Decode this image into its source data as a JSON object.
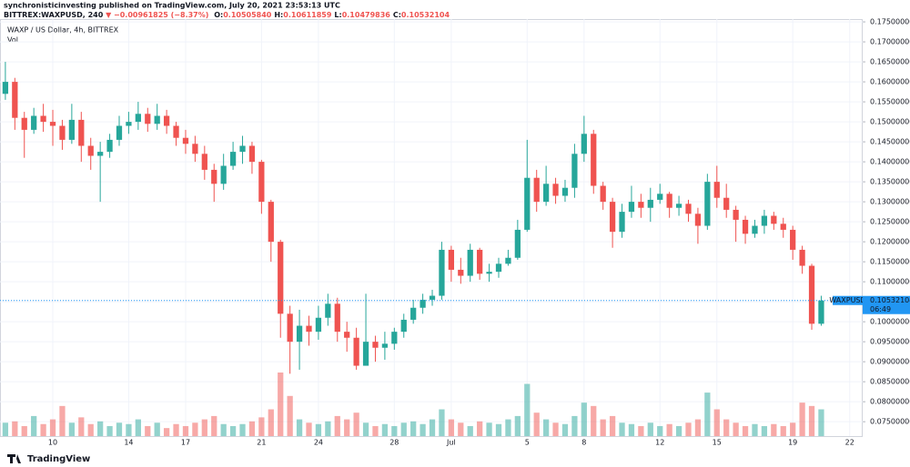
{
  "header": {
    "publisher": "synchronisticinvesting published on TradingView.com, July 20, 2021 23:53:13 UTC",
    "symbol": "BITTREX:WAXPUSD, 240",
    "change": "▼ −0.00961825 (−8.37%)",
    "ohlc": [
      {
        "label": "O:",
        "value": "0.10505840"
      },
      {
        "label": "H:",
        "value": "0.10611859"
      },
      {
        "label": "L:",
        "value": "0.10479836"
      },
      {
        "label": "C:",
        "value": "0.10532104"
      }
    ]
  },
  "footer": {
    "logo": "TradingView"
  },
  "chart_data": {
    "type": "candlestick",
    "title": "WAXP / US Dollar, 4h, BITTREX",
    "volume_label": "Vol",
    "up_color": "#26a69a",
    "down_color": "#ef5350",
    "last_price": 0.10532104,
    "last_symbol": "WAXPUSD",
    "countdown": "06:49",
    "last_color": "#2196f3",
    "ylim": [
      0.0714,
      0.1757
    ],
    "yticks": [
      {
        "value": 0.075,
        "label": "0.07500000"
      },
      {
        "value": 0.08,
        "label": "0.08000000"
      },
      {
        "value": 0.085,
        "label": "0.08500000"
      },
      {
        "value": 0.09,
        "label": "0.09000000"
      },
      {
        "value": 0.095,
        "label": "0.09500000"
      },
      {
        "value": 0.1,
        "label": "0.10000000"
      },
      {
        "value": 0.105,
        "label": "0.10500000"
      },
      {
        "value": 0.11,
        "label": "0.11000000"
      },
      {
        "value": 0.115,
        "label": "0.11500000"
      },
      {
        "value": 0.12,
        "label": "0.12000000"
      },
      {
        "value": 0.125,
        "label": "0.12500000"
      },
      {
        "value": 0.13,
        "label": "0.13000000"
      },
      {
        "value": 0.135,
        "label": "0.13500000"
      },
      {
        "value": 0.14,
        "label": "0.14000000"
      },
      {
        "value": 0.145,
        "label": "0.14500000"
      },
      {
        "value": 0.15,
        "label": "0.15000000"
      },
      {
        "value": 0.155,
        "label": "0.15500000"
      },
      {
        "value": 0.16,
        "label": "0.16000000"
      },
      {
        "value": 0.165,
        "label": "0.16500000"
      },
      {
        "value": 0.17,
        "label": "0.17000000"
      },
      {
        "value": 0.175,
        "label": "0.17500000"
      }
    ],
    "categories": [
      null,
      null,
      null,
      null,
      null,
      "10",
      null,
      null,
      null,
      null,
      null,
      null,
      null,
      "14",
      null,
      null,
      null,
      null,
      null,
      "17",
      null,
      null,
      null,
      null,
      null,
      null,
      null,
      "21",
      null,
      null,
      null,
      null,
      null,
      "24",
      null,
      null,
      null,
      null,
      null,
      null,
      null,
      "28",
      null,
      null,
      null,
      null,
      null,
      "Jul",
      null,
      null,
      null,
      null,
      null,
      null,
      null,
      "5",
      null,
      null,
      null,
      null,
      null,
      "8",
      null,
      null,
      null,
      null,
      null,
      null,
      null,
      "12",
      null,
      null,
      null,
      null,
      null,
      "15",
      null,
      null,
      null,
      null,
      null,
      null,
      null,
      "19",
      null,
      null,
      null,
      null,
      null,
      "22"
    ],
    "open": [
      0.157,
      0.16,
      0.151,
      0.148,
      0.1515,
      0.15,
      0.149,
      0.1455,
      0.1505,
      0.144,
      0.1415,
      0.1425,
      0.1455,
      0.149,
      0.15,
      0.152,
      0.1495,
      0.1515,
      0.149,
      0.146,
      0.1445,
      0.142,
      0.138,
      0.1345,
      0.139,
      0.1425,
      0.144,
      0.14,
      0.13,
      0.12,
      0.102,
      0.095,
      0.099,
      0.0975,
      0.101,
      0.1045,
      0.0975,
      0.096,
      0.089,
      0.095,
      0.0935,
      0.0945,
      0.0975,
      0.1005,
      0.1035,
      0.1055,
      0.1065,
      0.118,
      0.113,
      0.1115,
      0.118,
      0.112,
      0.1125,
      0.1145,
      0.116,
      0.123,
      0.136,
      0.13,
      0.1345,
      0.1315,
      0.1335,
      0.142,
      0.147,
      0.134,
      0.13,
      0.1225,
      0.1275,
      0.13,
      0.1285,
      0.1305,
      0.132,
      0.1285,
      0.1295,
      0.127,
      0.124,
      0.135,
      0.131,
      0.128,
      0.1255,
      0.122,
      0.124,
      0.1265,
      0.1245,
      0.123,
      0.118,
      0.114,
      0.0995,
      null,
      null,
      null
    ],
    "high": [
      0.165,
      0.161,
      0.1525,
      0.1535,
      0.1545,
      0.153,
      0.1505,
      0.1545,
      0.1525,
      0.146,
      0.145,
      0.147,
      0.1515,
      0.1525,
      0.155,
      0.1535,
      0.1545,
      0.153,
      0.15,
      0.148,
      0.1465,
      0.144,
      0.1395,
      0.142,
      0.145,
      0.1465,
      0.145,
      0.1405,
      0.1305,
      0.1205,
      0.104,
      0.103,
      0.1015,
      0.104,
      0.107,
      0.106,
      0.1,
      0.0985,
      0.107,
      0.0965,
      0.0975,
      0.0985,
      0.102,
      0.1055,
      0.107,
      0.108,
      0.12,
      0.119,
      0.116,
      0.1195,
      0.1185,
      0.1145,
      0.116,
      0.118,
      0.1255,
      0.1455,
      0.138,
      0.139,
      0.136,
      0.1355,
      0.1445,
      0.1515,
      0.148,
      0.135,
      0.131,
      0.1295,
      0.134,
      0.132,
      0.1335,
      0.1345,
      0.1325,
      0.1315,
      0.1305,
      0.1285,
      0.137,
      0.139,
      0.1345,
      0.129,
      0.1265,
      0.1255,
      0.128,
      0.1275,
      0.126,
      0.124,
      0.119,
      0.1145,
      0.1065,
      null,
      null,
      null
    ],
    "low": [
      0.1555,
      0.148,
      0.141,
      0.147,
      0.1475,
      0.144,
      0.143,
      0.1445,
      0.14,
      0.138,
      0.13,
      0.141,
      0.144,
      0.147,
      0.148,
      0.1475,
      0.148,
      0.147,
      0.144,
      0.142,
      0.14,
      0.1355,
      0.13,
      0.133,
      0.138,
      0.1395,
      0.137,
      0.127,
      0.115,
      0.096,
      0.087,
      0.088,
      0.094,
      0.0955,
      0.099,
      0.095,
      0.0925,
      0.088,
      0.089,
      0.09,
      0.0905,
      0.093,
      0.096,
      0.0995,
      0.102,
      0.104,
      0.1055,
      0.11,
      0.1095,
      0.11,
      0.1105,
      0.11,
      0.111,
      0.114,
      0.1155,
      0.1225,
      0.1275,
      0.129,
      0.1295,
      0.13,
      0.131,
      0.14,
      0.132,
      0.128,
      0.1185,
      0.121,
      0.126,
      0.126,
      0.125,
      0.1295,
      0.126,
      0.1265,
      0.125,
      0.1195,
      0.123,
      0.1285,
      0.126,
      0.12,
      0.1195,
      0.121,
      0.122,
      0.123,
      0.121,
      0.1155,
      0.112,
      0.098,
      0.099,
      null,
      null,
      null
    ],
    "close": [
      0.16,
      0.151,
      0.148,
      0.1515,
      0.15,
      0.149,
      0.1455,
      0.1505,
      0.144,
      0.1415,
      0.1425,
      0.1455,
      0.149,
      0.15,
      0.152,
      0.1495,
      0.1515,
      0.149,
      0.146,
      0.1445,
      0.142,
      0.138,
      0.1345,
      0.139,
      0.1425,
      0.144,
      0.14,
      0.13,
      0.12,
      0.102,
      0.095,
      0.099,
      0.0975,
      0.101,
      0.1045,
      0.0975,
      0.096,
      0.089,
      0.095,
      0.0935,
      0.0945,
      0.0975,
      0.1005,
      0.1035,
      0.1055,
      0.1065,
      0.118,
      0.113,
      0.1115,
      0.118,
      0.112,
      0.1125,
      0.1145,
      0.116,
      0.123,
      0.136,
      0.13,
      0.1345,
      0.1315,
      0.1335,
      0.142,
      0.147,
      0.134,
      0.13,
      0.1225,
      0.1275,
      0.13,
      0.1285,
      0.1305,
      0.132,
      0.1285,
      0.1295,
      0.127,
      0.124,
      0.135,
      0.131,
      0.128,
      0.1255,
      0.122,
      0.124,
      0.1265,
      0.1245,
      0.123,
      0.118,
      0.114,
      0.0995,
      0.10532104,
      null,
      null,
      null
    ],
    "volume": [
      20,
      22,
      15,
      30,
      18,
      25,
      45,
      20,
      28,
      18,
      22,
      15,
      20,
      18,
      25,
      15,
      20,
      12,
      18,
      15,
      20,
      25,
      30,
      18,
      15,
      18,
      22,
      28,
      40,
      95,
      60,
      25,
      20,
      18,
      22,
      30,
      25,
      35,
      20,
      15,
      18,
      15,
      20,
      22,
      18,
      25,
      40,
      25,
      20,
      15,
      22,
      20,
      18,
      25,
      30,
      78,
      35,
      25,
      20,
      18,
      30,
      50,
      45,
      25,
      30,
      20,
      18,
      15,
      20,
      15,
      18,
      15,
      20,
      25,
      65,
      40,
      25,
      20,
      15,
      18,
      15,
      18,
      15,
      20,
      50,
      45,
      40,
      null,
      null,
      null
    ]
  }
}
